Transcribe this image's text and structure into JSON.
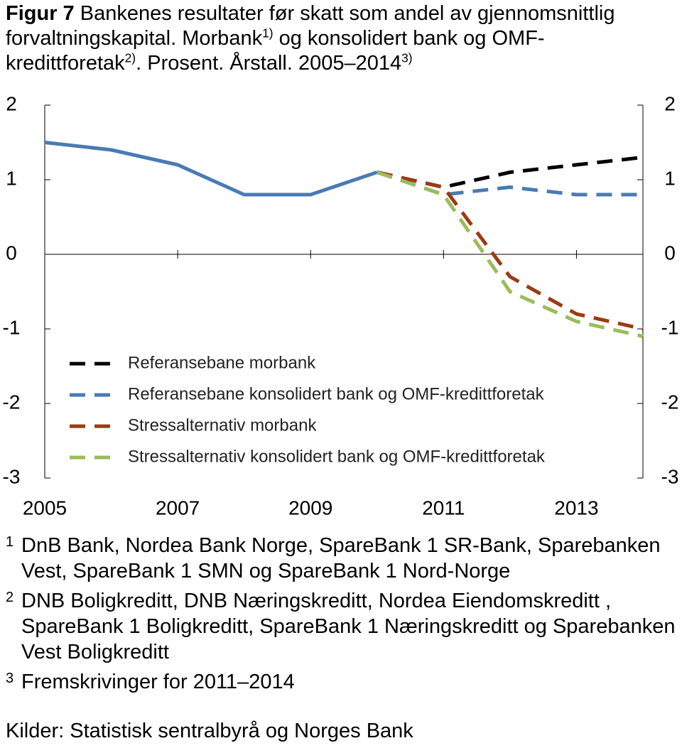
{
  "chart_data": {
    "type": "line",
    "title_label": "Figur 7",
    "title": [
      "Bankenes resultater før skatt som andel av gjennomsnittlig forvaltningskapital. Morbank",
      "1)",
      " og konsolidert bank og OMF-kredittforetak",
      "2)",
      ". Prosent. Årstall. 2005–2014",
      "3)"
    ],
    "x": [
      2005,
      2006,
      2007,
      2008,
      2009,
      2010,
      2011,
      2012,
      2013,
      2014
    ],
    "xlim": [
      2005,
      2014
    ],
    "xticks": [
      2005,
      2007,
      2009,
      2011,
      2013
    ],
    "ylim": [
      -3,
      2
    ],
    "yticks": [
      -3,
      -2,
      -1,
      0,
      1,
      2
    ],
    "y2lim": [
      -3,
      2
    ],
    "y2ticks": [
      -3,
      -2,
      -1,
      0,
      1,
      2
    ],
    "grid": false,
    "series": [
      {
        "color": "#4a7ab5",
        "linestyle": "solid",
        "values": [
          1.5,
          1.4,
          1.2,
          0.8,
          0.8,
          1.1,
          null,
          null,
          null,
          null
        ]
      },
      {
        "name": "Referansebane morbank",
        "color": "#000000",
        "linestyle": "dashed",
        "values": [
          null,
          null,
          null,
          null,
          null,
          1.1,
          0.9,
          1.1,
          1.2,
          1.3
        ]
      },
      {
        "name": "Referansebane konsolidert bank og OMF-kredittforetak",
        "color": "#4a7ab5",
        "linestyle": "dashed",
        "values": [
          null,
          null,
          null,
          null,
          null,
          1.1,
          0.8,
          0.9,
          0.8,
          0.8
        ]
      },
      {
        "name": "Stressalternativ morbank",
        "color": "#9c3a12",
        "linestyle": "dashed",
        "values": [
          null,
          null,
          null,
          null,
          null,
          1.1,
          0.9,
          -0.3,
          -0.8,
          -1.0
        ]
      },
      {
        "name": "Stressalternativ konsolidert bank og OMF-kredittforetak",
        "color": "#9bbb59",
        "linestyle": "dashed",
        "values": [
          null,
          null,
          null,
          null,
          null,
          1.1,
          0.8,
          -0.5,
          -0.9,
          -1.1
        ]
      }
    ],
    "notes": [
      {
        "mark": "1",
        "text": "DnB Bank, Nordea Bank Norge, SpareBank 1 SR-Bank, Sparebanken Vest, SpareBank 1 SMN og SpareBank 1 Nord-Norge"
      },
      {
        "mark": "2",
        "text": "DNB Boligkreditt, DNB Næringskreditt, Nordea Eiendomskreditt , SpareBank 1 Boligkreditt, SpareBank 1 Næringskreditt og Sparebanken Vest Boligkreditt"
      },
      {
        "mark": "3",
        "text": "Fremskrivinger for 2011–2014"
      }
    ],
    "source": "Kilder: Statistisk sentralbyrå og Norges Bank"
  }
}
